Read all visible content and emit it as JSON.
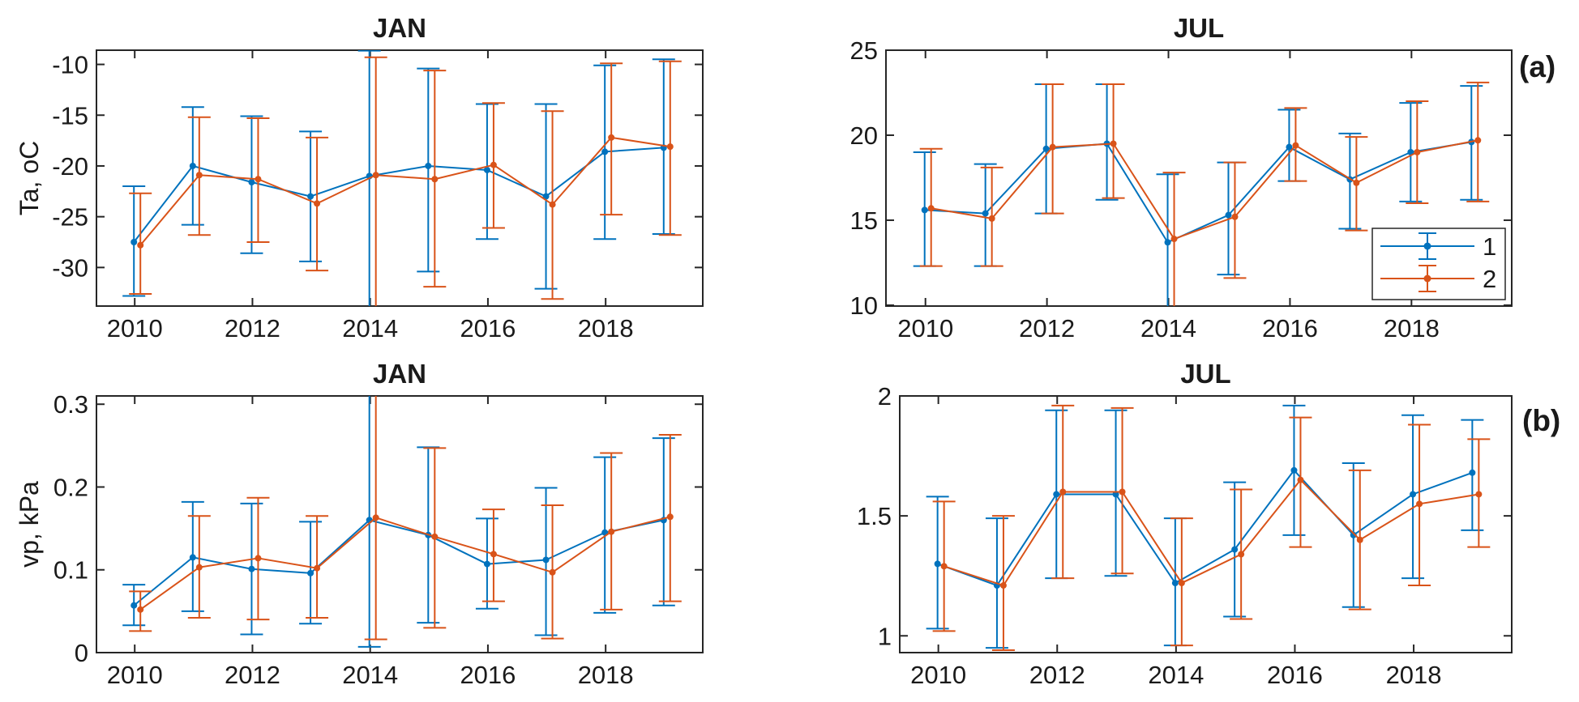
{
  "figure": {
    "panel_labels": {
      "a": "(a)",
      "b": "(b)"
    },
    "colors": {
      "series1": "#0072BD",
      "series2": "#D95319",
      "axis": "#262626",
      "background": "#ffffff"
    },
    "legend": {
      "entries": [
        {
          "label": "1",
          "color": "#0072BD"
        },
        {
          "label": "2",
          "color": "#D95319"
        }
      ]
    }
  },
  "chart_data": [
    {
      "id": "ta-jan",
      "type": "line",
      "title": "JAN",
      "ylabel": "Ta, oC",
      "x": [
        2010,
        2011,
        2012,
        2013,
        2014,
        2015,
        2016,
        2017,
        2018,
        2019
      ],
      "xlim": [
        2009.35,
        2019.65
      ],
      "ylim": [
        -33.8,
        -8.6
      ],
      "xticks": {
        "values": [
          2010,
          2012,
          2014,
          2016,
          2018
        ],
        "labels": [
          "2010",
          "2012",
          "2014",
          "2016",
          "2018"
        ]
      },
      "yticks": {
        "values": [
          -30,
          -25,
          -20,
          -15,
          -10
        ],
        "labels": [
          "-30",
          "-25",
          "-20",
          "-15",
          "-10"
        ]
      },
      "grid": false,
      "legend": false,
      "series": [
        {
          "name": "1",
          "color": "#0072BD",
          "y": [
            -27.5,
            -20.0,
            -21.6,
            -23.0,
            -21.0,
            -20.0,
            -20.4,
            -23.0,
            -18.6,
            -18.2
          ],
          "upper": [
            -22.0,
            -14.2,
            -15.1,
            -16.6,
            -8.65,
            -10.4,
            -13.9,
            -13.9,
            -10.1,
            -9.5
          ],
          "lower": [
            -32.8,
            -25.8,
            -28.6,
            -29.4,
            -34.6,
            -30.4,
            -27.2,
            -32.1,
            -27.2,
            -26.7
          ]
        },
        {
          "name": "2",
          "color": "#D95319",
          "y": [
            -27.8,
            -20.9,
            -21.3,
            -23.7,
            -20.9,
            -21.3,
            -19.9,
            -23.8,
            -17.2,
            -18.1
          ],
          "upper": [
            -22.7,
            -15.2,
            -15.3,
            -17.2,
            -9.3,
            -10.6,
            -13.8,
            -14.6,
            -9.9,
            -9.7
          ],
          "lower": [
            -32.6,
            -26.8,
            -27.5,
            -30.3,
            -34.6,
            -31.9,
            -26.1,
            -33.1,
            -24.8,
            -26.8
          ]
        }
      ]
    },
    {
      "id": "ta-jul",
      "type": "line",
      "title": "JUL",
      "ylabel": "",
      "x": [
        2010,
        2011,
        2012,
        2013,
        2014,
        2015,
        2016,
        2017,
        2018,
        2019
      ],
      "xlim": [
        2009.35,
        2019.65
      ],
      "ylim": [
        9.95,
        25.0
      ],
      "xticks": {
        "values": [
          2010,
          2012,
          2014,
          2016,
          2018
        ],
        "labels": [
          "2010",
          "2012",
          "2014",
          "2016",
          "2018"
        ]
      },
      "yticks": {
        "values": [
          10,
          15,
          20,
          25
        ],
        "labels": [
          "10",
          "15",
          "20",
          "25"
        ]
      },
      "grid": false,
      "legend": true,
      "series": [
        {
          "name": "1",
          "color": "#0072BD",
          "y": [
            15.6,
            15.4,
            19.2,
            19.5,
            13.7,
            15.3,
            19.3,
            17.4,
            19.0,
            19.6
          ],
          "upper": [
            19.0,
            18.3,
            23.0,
            23.0,
            17.7,
            18.4,
            21.5,
            20.1,
            21.9,
            22.9
          ],
          "lower": [
            12.3,
            12.3,
            15.4,
            16.2,
            9.6,
            11.8,
            17.3,
            14.5,
            16.1,
            16.2
          ]
        },
        {
          "name": "2",
          "color": "#D95319",
          "y": [
            15.7,
            15.1,
            19.3,
            19.5,
            13.9,
            15.2,
            19.4,
            17.2,
            19.0,
            19.7
          ],
          "upper": [
            19.2,
            18.1,
            23.0,
            23.0,
            17.8,
            18.4,
            21.6,
            19.9,
            22.0,
            23.1
          ],
          "lower": [
            12.3,
            12.3,
            15.4,
            16.3,
            9.5,
            11.6,
            17.3,
            14.4,
            16.0,
            16.1
          ]
        }
      ]
    },
    {
      "id": "vp-jan",
      "type": "line",
      "title": "JAN",
      "ylabel": "vp, kPa",
      "x": [
        2010,
        2011,
        2012,
        2013,
        2014,
        2015,
        2016,
        2017,
        2018,
        2019
      ],
      "xlim": [
        2009.35,
        2019.65
      ],
      "ylim": [
        0,
        0.31
      ],
      "xticks": {
        "values": [
          2010,
          2012,
          2014,
          2016,
          2018
        ],
        "labels": [
          "2010",
          "2012",
          "2014",
          "2016",
          "2018"
        ]
      },
      "yticks": {
        "values": [
          0,
          0.1,
          0.2,
          0.3
        ],
        "labels": [
          "0",
          "0.1",
          "0.2",
          "0.3"
        ]
      },
      "grid": false,
      "legend": false,
      "series": [
        {
          "name": "1",
          "color": "#0072BD",
          "y": [
            0.057,
            0.115,
            0.101,
            0.096,
            0.16,
            0.142,
            0.107,
            0.112,
            0.145,
            0.16
          ],
          "upper": [
            0.082,
            0.182,
            0.18,
            0.158,
            0.335,
            0.248,
            0.162,
            0.199,
            0.236,
            0.259
          ],
          "lower": [
            0.033,
            0.05,
            0.022,
            0.035,
            0.007,
            0.036,
            0.053,
            0.021,
            0.048,
            0.057
          ]
        },
        {
          "name": "2",
          "color": "#D95319",
          "y": [
            0.052,
            0.103,
            0.114,
            0.102,
            0.163,
            0.14,
            0.119,
            0.097,
            0.146,
            0.164
          ],
          "upper": [
            0.074,
            0.165,
            0.187,
            0.165,
            0.335,
            0.247,
            0.173,
            0.178,
            0.241,
            0.263
          ],
          "lower": [
            0.026,
            0.042,
            0.04,
            0.042,
            0.016,
            0.03,
            0.062,
            0.017,
            0.052,
            0.062
          ]
        }
      ]
    },
    {
      "id": "vp-jul",
      "type": "line",
      "title": "JUL",
      "ylabel": "",
      "x": [
        2010,
        2011,
        2012,
        2013,
        2014,
        2015,
        2016,
        2017,
        2018,
        2019
      ],
      "xlim": [
        2009.35,
        2019.65
      ],
      "ylim": [
        0.93,
        2.0
      ],
      "xticks": {
        "values": [
          2010,
          2012,
          2014,
          2016,
          2018
        ],
        "labels": [
          "2010",
          "2012",
          "2014",
          "2016",
          "2018"
        ]
      },
      "yticks": {
        "values": [
          1,
          1.5,
          2
        ],
        "labels": [
          "1",
          "1.5",
          "2"
        ]
      },
      "grid": false,
      "legend": false,
      "series": [
        {
          "name": "1",
          "color": "#0072BD",
          "y": [
            1.3,
            1.21,
            1.59,
            1.59,
            1.22,
            1.36,
            1.69,
            1.42,
            1.59,
            1.68
          ],
          "upper": [
            1.58,
            1.49,
            1.94,
            1.94,
            1.49,
            1.64,
            1.96,
            1.72,
            1.92,
            1.9
          ],
          "lower": [
            1.03,
            0.95,
            1.24,
            1.25,
            0.96,
            1.08,
            1.42,
            1.12,
            1.24,
            1.44
          ]
        },
        {
          "name": "2",
          "color": "#D95319",
          "y": [
            1.29,
            1.21,
            1.6,
            1.6,
            1.22,
            1.34,
            1.65,
            1.4,
            1.55,
            1.59
          ],
          "upper": [
            1.56,
            1.5,
            1.96,
            1.95,
            1.49,
            1.61,
            1.91,
            1.69,
            1.88,
            1.82
          ],
          "lower": [
            1.02,
            0.94,
            1.24,
            1.26,
            0.96,
            1.07,
            1.37,
            1.11,
            1.21,
            1.37
          ]
        }
      ]
    }
  ]
}
